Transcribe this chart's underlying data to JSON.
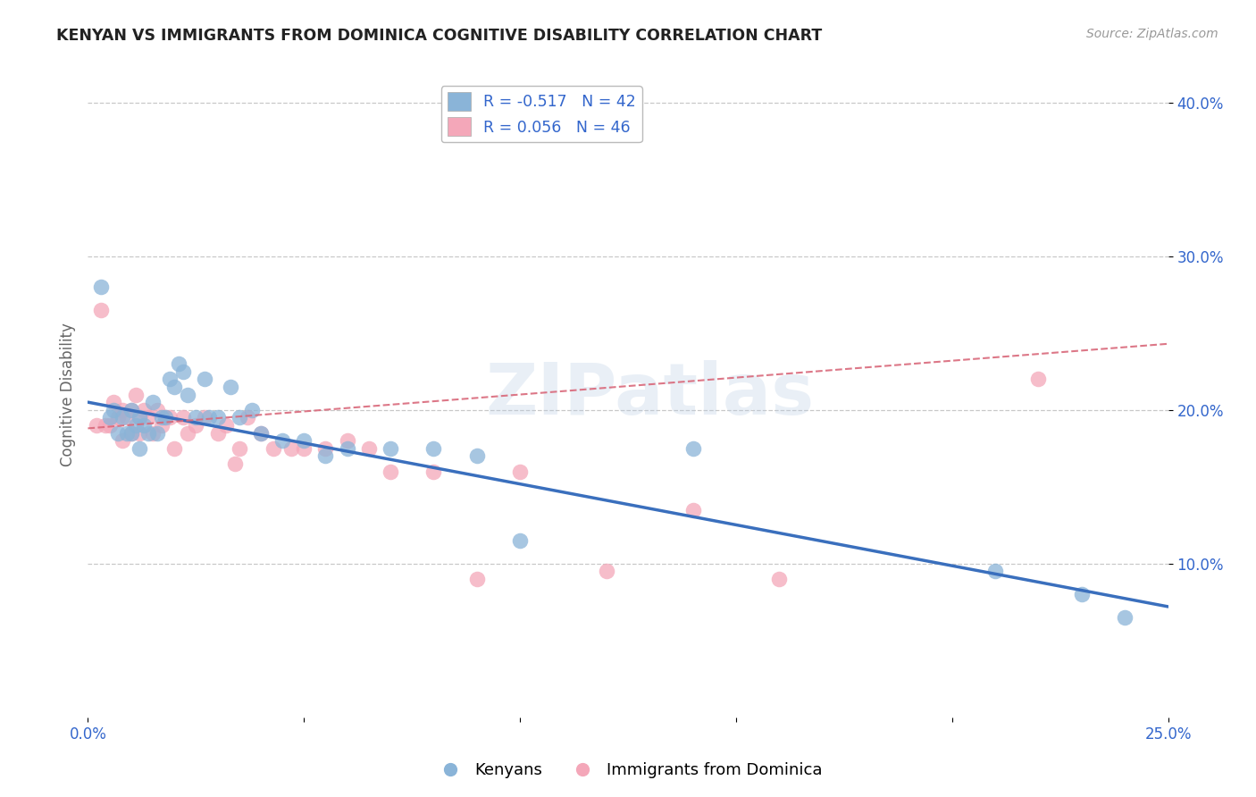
{
  "title": "KENYAN VS IMMIGRANTS FROM DOMINICA COGNITIVE DISABILITY CORRELATION CHART",
  "source": "Source: ZipAtlas.com",
  "ylabel": "Cognitive Disability",
  "xlim": [
    0,
    0.25
  ],
  "ylim": [
    0,
    0.42
  ],
  "xtick_positions": [
    0.0,
    0.05,
    0.1,
    0.15,
    0.2,
    0.25
  ],
  "xtick_labels": [
    "0.0%",
    "",
    "",
    "",
    "",
    "25.0%"
  ],
  "ytick_positions": [
    0.1,
    0.2,
    0.3,
    0.4
  ],
  "ytick_labels": [
    "10.0%",
    "20.0%",
    "30.0%",
    "40.0%"
  ],
  "legend_label1": "Kenyans",
  "legend_label2": "Immigrants from Dominica",
  "r1": -0.517,
  "n1": 42,
  "r2": 0.056,
  "n2": 46,
  "color_blue": "#8ab4d8",
  "color_blue_line": "#3a6fbd",
  "color_pink": "#f4a7b9",
  "color_pink_line": "#d9687a",
  "background": "#ffffff",
  "grid_color": "#c8c8c8",
  "watermark": "ZIPatlas",
  "blue_line_x0": 0.0,
  "blue_line_y0": 0.205,
  "blue_line_x1": 0.25,
  "blue_line_y1": 0.072,
  "pink_line_x0": 0.0,
  "pink_line_y0": 0.188,
  "pink_line_x1": 0.25,
  "pink_line_y1": 0.243,
  "blue_x": [
    0.003,
    0.005,
    0.006,
    0.007,
    0.008,
    0.009,
    0.01,
    0.01,
    0.011,
    0.012,
    0.012,
    0.013,
    0.014,
    0.015,
    0.016,
    0.017,
    0.018,
    0.019,
    0.02,
    0.021,
    0.022,
    0.023,
    0.025,
    0.027,
    0.028,
    0.03,
    0.033,
    0.035,
    0.038,
    0.04,
    0.045,
    0.05,
    0.055,
    0.06,
    0.07,
    0.08,
    0.09,
    0.1,
    0.14,
    0.21,
    0.23,
    0.24
  ],
  "blue_y": [
    0.28,
    0.195,
    0.2,
    0.185,
    0.195,
    0.185,
    0.185,
    0.2,
    0.19,
    0.195,
    0.175,
    0.19,
    0.185,
    0.205,
    0.185,
    0.195,
    0.195,
    0.22,
    0.215,
    0.23,
    0.225,
    0.21,
    0.195,
    0.22,
    0.195,
    0.195,
    0.215,
    0.195,
    0.2,
    0.185,
    0.18,
    0.18,
    0.17,
    0.175,
    0.175,
    0.175,
    0.17,
    0.115,
    0.175,
    0.095,
    0.08,
    0.065
  ],
  "pink_x": [
    0.002,
    0.003,
    0.004,
    0.005,
    0.006,
    0.007,
    0.008,
    0.008,
    0.009,
    0.01,
    0.01,
    0.011,
    0.012,
    0.012,
    0.013,
    0.014,
    0.015,
    0.016,
    0.017,
    0.018,
    0.019,
    0.02,
    0.022,
    0.023,
    0.025,
    0.027,
    0.03,
    0.032,
    0.034,
    0.035,
    0.037,
    0.04,
    0.043,
    0.047,
    0.05,
    0.055,
    0.06,
    0.065,
    0.07,
    0.08,
    0.09,
    0.1,
    0.12,
    0.14,
    0.16,
    0.22
  ],
  "pink_y": [
    0.19,
    0.265,
    0.19,
    0.19,
    0.205,
    0.195,
    0.2,
    0.18,
    0.195,
    0.185,
    0.2,
    0.21,
    0.185,
    0.195,
    0.2,
    0.195,
    0.185,
    0.2,
    0.19,
    0.195,
    0.195,
    0.175,
    0.195,
    0.185,
    0.19,
    0.195,
    0.185,
    0.19,
    0.165,
    0.175,
    0.195,
    0.185,
    0.175,
    0.175,
    0.175,
    0.175,
    0.18,
    0.175,
    0.16,
    0.16,
    0.09,
    0.16,
    0.095,
    0.135,
    0.09,
    0.22
  ]
}
